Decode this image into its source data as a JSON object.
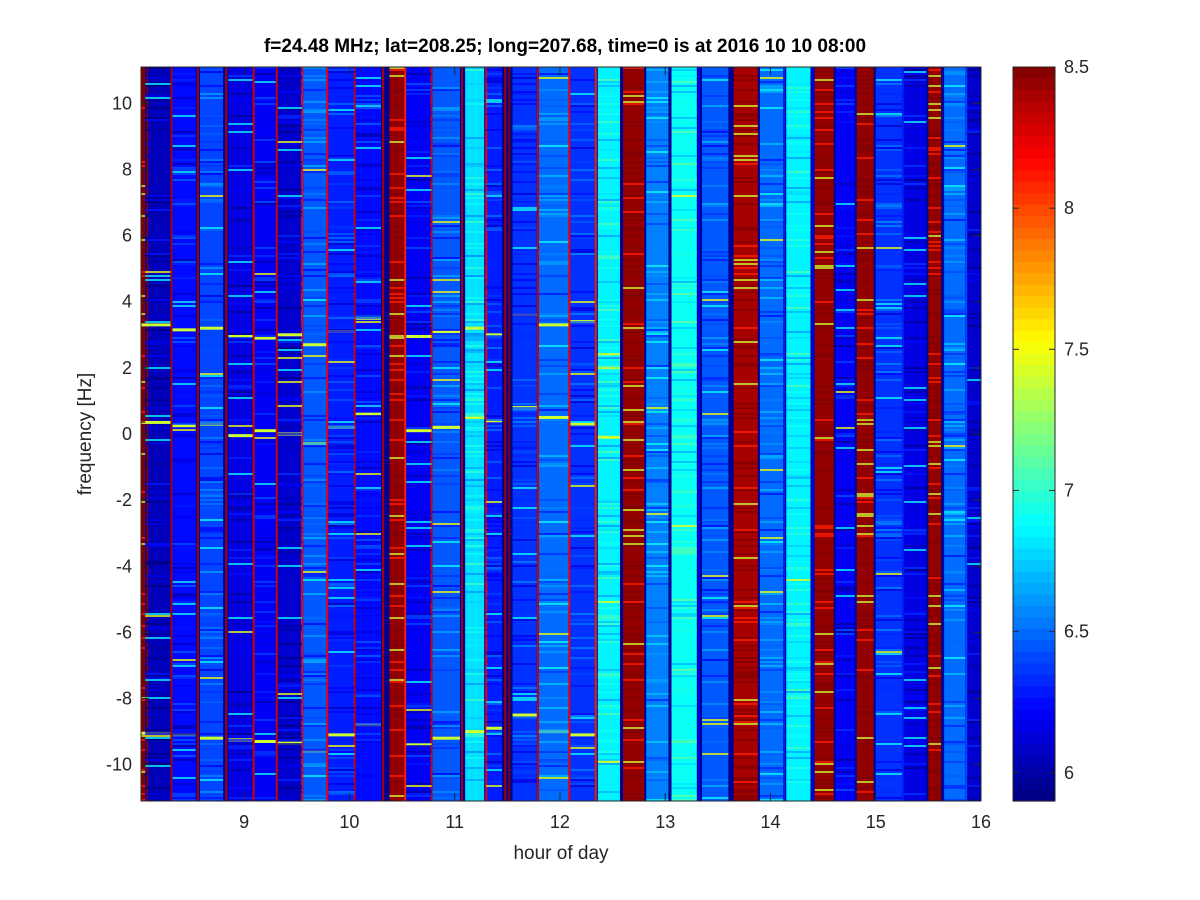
{
  "chart_data": {
    "type": "heatmap",
    "title": "f=24.48 MHz;  lat=208.25; long=207.68, time=0 is at 2016 10 10 08:00",
    "xlabel": "hour of day",
    "ylabel": "frequency [Hz]",
    "xlim": [
      8.02,
      16.0
    ],
    "ylim": [
      -11.1,
      11.1
    ],
    "x_ticks": [
      {
        "value": 9,
        "label": "9"
      },
      {
        "value": 10,
        "label": "10"
      },
      {
        "value": 11,
        "label": "11"
      },
      {
        "value": 12,
        "label": "12"
      },
      {
        "value": 13,
        "label": "13"
      },
      {
        "value": 14,
        "label": "14"
      },
      {
        "value": 15,
        "label": "15"
      },
      {
        "value": 16,
        "label": "16"
      }
    ],
    "y_ticks": [
      {
        "value": 10,
        "label": "10"
      },
      {
        "value": 8,
        "label": "8"
      },
      {
        "value": 6,
        "label": "6"
      },
      {
        "value": 4,
        "label": "4"
      },
      {
        "value": 2,
        "label": "2"
      },
      {
        "value": 0,
        "label": "0"
      },
      {
        "value": -2,
        "label": "-2"
      },
      {
        "value": -4,
        "label": "-4"
      },
      {
        "value": -6,
        "label": "-6"
      },
      {
        "value": -8,
        "label": "-8"
      },
      {
        "value": -10,
        "label": "-10"
      }
    ],
    "colorbar": {
      "colormap": "jet",
      "clim": [
        5.9,
        8.5
      ],
      "ticks": [
        {
          "value": 8.5,
          "label": "8.5"
        },
        {
          "value": 8,
          "label": "8"
        },
        {
          "value": 7.5,
          "label": "7.5"
        },
        {
          "value": 7,
          "label": "7"
        },
        {
          "value": 6.5,
          "label": "6.5"
        },
        {
          "value": 6,
          "label": "6"
        }
      ]
    },
    "time_columns": [
      {
        "start": 8.02,
        "end": 8.06,
        "level": 8.5
      },
      {
        "start": 8.06,
        "end": 8.3,
        "level": 6.05
      },
      {
        "start": 8.32,
        "end": 8.54,
        "level": 6.25
      },
      {
        "start": 8.58,
        "end": 8.8,
        "level": 6.4
      },
      {
        "start": 8.85,
        "end": 9.08,
        "level": 6.15
      },
      {
        "start": 9.1,
        "end": 9.3,
        "level": 6.2
      },
      {
        "start": 9.32,
        "end": 9.55,
        "level": 6.1
      },
      {
        "start": 9.56,
        "end": 9.78,
        "level": 6.45
      },
      {
        "start": 9.8,
        "end": 10.05,
        "level": 6.3
      },
      {
        "start": 10.06,
        "end": 10.3,
        "level": 6.25
      },
      {
        "start": 10.38,
        "end": 10.52,
        "level": 8.45
      },
      {
        "start": 10.54,
        "end": 10.78,
        "level": 6.2
      },
      {
        "start": 10.79,
        "end": 11.05,
        "level": 6.45
      },
      {
        "start": 11.1,
        "end": 11.28,
        "level": 6.8
      },
      {
        "start": 11.3,
        "end": 11.45,
        "level": 6.3
      },
      {
        "start": 11.55,
        "end": 11.78,
        "level": 6.35
      },
      {
        "start": 11.8,
        "end": 12.08,
        "level": 6.5
      },
      {
        "start": 12.1,
        "end": 12.33,
        "level": 6.35
      },
      {
        "start": 12.36,
        "end": 12.57,
        "level": 6.85
      },
      {
        "start": 12.6,
        "end": 12.8,
        "level": 8.45
      },
      {
        "start": 12.82,
        "end": 13.03,
        "level": 6.55
      },
      {
        "start": 13.06,
        "end": 13.3,
        "level": 6.9
      },
      {
        "start": 13.35,
        "end": 13.6,
        "level": 6.45
      },
      {
        "start": 13.65,
        "end": 13.88,
        "level": 8.4
      },
      {
        "start": 13.9,
        "end": 14.12,
        "level": 6.5
      },
      {
        "start": 14.15,
        "end": 14.38,
        "level": 6.85
      },
      {
        "start": 14.42,
        "end": 14.6,
        "level": 8.45
      },
      {
        "start": 14.62,
        "end": 14.8,
        "level": 6.2
      },
      {
        "start": 14.82,
        "end": 14.98,
        "level": 8.45
      },
      {
        "start": 15.0,
        "end": 15.25,
        "level": 6.35
      },
      {
        "start": 15.27,
        "end": 15.48,
        "level": 6.15
      },
      {
        "start": 15.5,
        "end": 15.62,
        "level": 8.45
      },
      {
        "start": 15.65,
        "end": 15.85,
        "level": 6.5
      },
      {
        "start": 15.87,
        "end": 16.0,
        "level": 6.1
      }
    ],
    "thin_lines": [
      {
        "x": 8.08,
        "level": 8.5
      },
      {
        "x": 8.31,
        "level": 8.4
      },
      {
        "x": 8.56,
        "level": 8.4
      },
      {
        "x": 8.83,
        "level": 8.4
      },
      {
        "x": 9.09,
        "level": 8.3
      },
      {
        "x": 9.31,
        "level": 8.3
      },
      {
        "x": 9.55,
        "level": 8.2
      },
      {
        "x": 9.79,
        "level": 8.2
      },
      {
        "x": 10.05,
        "level": 8.3
      },
      {
        "x": 10.32,
        "level": 8.4
      },
      {
        "x": 10.53,
        "level": 8.1
      },
      {
        "x": 10.78,
        "level": 8.3
      },
      {
        "x": 11.07,
        "level": 8.4
      },
      {
        "x": 11.3,
        "level": 8.2
      },
      {
        "x": 11.48,
        "level": 8.4
      },
      {
        "x": 11.52,
        "level": 8.5
      },
      {
        "x": 11.79,
        "level": 8.3
      },
      {
        "x": 12.09,
        "level": 8.2
      },
      {
        "x": 12.34,
        "level": 8.1
      },
      {
        "x": 13.32,
        "level": 6.2
      },
      {
        "x": 14.13,
        "level": 6.3
      },
      {
        "x": 14.4,
        "level": 6.2
      },
      {
        "x": 15.26,
        "level": 6.3
      },
      {
        "x": 15.86,
        "level": 6.4
      }
    ],
    "spectral_lines": [
      {
        "x_start": 8.02,
        "x_end": 8.3,
        "y": 3.3
      },
      {
        "x_start": 8.32,
        "x_end": 8.54,
        "y": 3.15
      },
      {
        "x_start": 8.58,
        "x_end": 8.8,
        "y": 3.2
      },
      {
        "x_start": 8.85,
        "x_end": 9.08,
        "y": 2.95
      },
      {
        "x_start": 9.1,
        "x_end": 9.3,
        "y": 2.9
      },
      {
        "x_start": 9.32,
        "x_end": 9.55,
        "y": 3.0
      },
      {
        "x_start": 9.56,
        "x_end": 9.78,
        "y": 2.7
      },
      {
        "x_start": 9.8,
        "x_end": 10.05,
        "y": 3.1
      },
      {
        "x_start": 10.06,
        "x_end": 10.3,
        "y": 3.5
      },
      {
        "x_start": 10.54,
        "x_end": 10.78,
        "y": 2.95
      },
      {
        "x_start": 10.79,
        "x_end": 11.05,
        "y": 3.1
      },
      {
        "x_start": 11.1,
        "x_end": 11.28,
        "y": 3.2
      },
      {
        "x_start": 11.3,
        "x_end": 11.45,
        "y": 3.0
      },
      {
        "x_start": 11.55,
        "x_end": 11.78,
        "y": 3.6
      },
      {
        "x_start": 11.8,
        "x_end": 12.08,
        "y": 3.3
      },
      {
        "x_start": 12.1,
        "x_end": 12.33,
        "y": 3.4
      },
      {
        "x_start": 12.36,
        "x_end": 12.57,
        "y": 2.4
      },
      {
        "x_start": 8.02,
        "x_end": 8.3,
        "y": 0.35
      },
      {
        "x_start": 8.32,
        "x_end": 8.54,
        "y": 0.25
      },
      {
        "x_start": 8.58,
        "x_end": 8.8,
        "y": 0.3
      },
      {
        "x_start": 8.85,
        "x_end": 9.08,
        "y": -0.05
      },
      {
        "x_start": 9.1,
        "x_end": 9.3,
        "y": 0.1
      },
      {
        "x_start": 9.32,
        "x_end": 9.55,
        "y": 0.0
      },
      {
        "x_start": 9.56,
        "x_end": 9.78,
        "y": -0.3
      },
      {
        "x_start": 9.8,
        "x_end": 10.05,
        "y": 0.2
      },
      {
        "x_start": 10.06,
        "x_end": 10.3,
        "y": 0.6
      },
      {
        "x_start": 10.54,
        "x_end": 10.78,
        "y": 0.1
      },
      {
        "x_start": 10.79,
        "x_end": 11.05,
        "y": 0.2
      },
      {
        "x_start": 11.1,
        "x_end": 11.28,
        "y": 0.5
      },
      {
        "x_start": 11.3,
        "x_end": 11.45,
        "y": 0.4
      },
      {
        "x_start": 11.55,
        "x_end": 11.78,
        "y": 0.8
      },
      {
        "x_start": 11.8,
        "x_end": 12.08,
        "y": 0.5
      },
      {
        "x_start": 12.1,
        "x_end": 12.33,
        "y": 0.3
      },
      {
        "x_start": 12.36,
        "x_end": 12.57,
        "y": -0.1
      },
      {
        "x_start": 8.02,
        "x_end": 8.3,
        "y": -9.05
      },
      {
        "x_start": 8.32,
        "x_end": 8.54,
        "y": -9.1
      },
      {
        "x_start": 8.58,
        "x_end": 8.8,
        "y": -9.2
      },
      {
        "x_start": 8.85,
        "x_end": 9.08,
        "y": -9.25
      },
      {
        "x_start": 9.1,
        "x_end": 9.3,
        "y": -9.3
      },
      {
        "x_start": 9.32,
        "x_end": 9.55,
        "y": -9.35
      },
      {
        "x_start": 9.56,
        "x_end": 9.78,
        "y": -9.6
      },
      {
        "x_start": 9.8,
        "x_end": 10.05,
        "y": -9.1
      },
      {
        "x_start": 10.06,
        "x_end": 10.3,
        "y": -8.8
      },
      {
        "x_start": 10.54,
        "x_end": 10.78,
        "y": -9.4
      },
      {
        "x_start": 10.79,
        "x_end": 11.05,
        "y": -9.2
      },
      {
        "x_start": 11.1,
        "x_end": 11.28,
        "y": -9.0
      },
      {
        "x_start": 11.3,
        "x_end": 11.45,
        "y": -8.9
      },
      {
        "x_start": 11.55,
        "x_end": 11.78,
        "y": -8.5
      },
      {
        "x_start": 11.8,
        "x_end": 12.08,
        "y": -9.0
      },
      {
        "x_start": 12.1,
        "x_end": 12.33,
        "y": -9.1
      },
      {
        "x_start": 12.36,
        "x_end": 12.57,
        "y": -9.9
      }
    ]
  }
}
